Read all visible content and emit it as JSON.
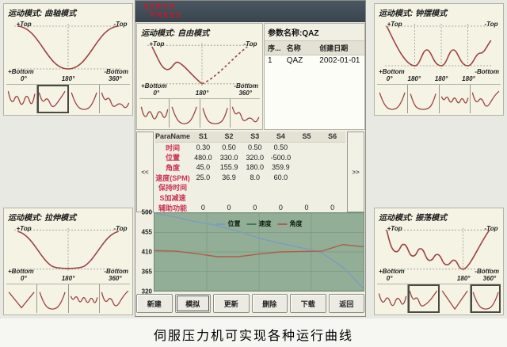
{
  "caption": "伺服压力机可实现各种运行曲线",
  "panels": {
    "crank": {
      "title": "运动模式: 曲轴模式",
      "top_left": "+Top",
      "top_right": "-Top",
      "bottom_left": "+Bottom",
      "bottom_right": "-Bottom",
      "ticks": [
        "0°",
        "180°",
        "360°"
      ]
    },
    "pendulum": {
      "title": "运动模式: 钟摆模式",
      "top_left": "+Top",
      "top_right": "-Top",
      "bottom_left": "+Bottom",
      "bottom_right": "-Bottom",
      "ticks": [
        "0°",
        "180°",
        "180°",
        "180°"
      ]
    },
    "stretch": {
      "title": "运动模式: 拉伸模式",
      "top_left": "+Top",
      "top_right": "-Top",
      "bottom_left": "+Bottom",
      "bottom_right": "-Bottom",
      "ticks": [
        "0°",
        "180°",
        "360°"
      ]
    },
    "oscillate": {
      "title": "运动模式: 振荡模式",
      "top_left": "+Top",
      "top_right": "-Top",
      "bottom_left": "+Bottom",
      "bottom_right": "-Bottom",
      "ticks": [
        "0°",
        "180°",
        "360°"
      ]
    },
    "free": {
      "title": "运动模式: 自由模式",
      "top_left": "+Top",
      "top_right": "-Top",
      "bottom_left": "+Bottom",
      "bottom_right": "-Bottom",
      "ticks": [
        "0°",
        "180°",
        "360°"
      ]
    }
  },
  "window": {
    "titlebar": {
      "line1": "SERVO",
      "line2": "PRESS"
    },
    "param_list": {
      "title": "参数名称:QAZ",
      "columns": [
        "序...",
        "名称",
        "创建日期"
      ],
      "rows": [
        [
          "1",
          "QAZ",
          "2002-01-01"
        ]
      ]
    },
    "param_table": {
      "left_scroll": "<<",
      "right_scroll": ">>",
      "header": [
        "ParaName",
        "S1",
        "S2",
        "S3",
        "S4",
        "S5",
        "S6"
      ],
      "rows": [
        {
          "label": "时间",
          "values": [
            "0.30",
            "0.50",
            "0.50",
            "0.50",
            "",
            ""
          ]
        },
        {
          "label": "位置",
          "values": [
            "480.0",
            "330.0",
            "320.0",
            "-500.0",
            "",
            ""
          ]
        },
        {
          "label": "角度",
          "values": [
            "45.0",
            "155.9",
            "180.0",
            "359.9",
            "",
            ""
          ]
        },
        {
          "label": "速度(SPM)",
          "values": [
            "25.0",
            "36.9",
            "8.0",
            "60.0",
            "",
            ""
          ]
        },
        {
          "label": "保持时间",
          "values": [
            "",
            "",
            "",
            "",
            "",
            ""
          ]
        },
        {
          "label": "S加减速",
          "values": [
            "",
            "",
            "",
            "",
            "",
            ""
          ]
        },
        {
          "label": "辅助功能",
          "values": [
            "0",
            "0",
            "0",
            "0",
            "0",
            "0"
          ]
        }
      ]
    },
    "buttons": [
      "新建",
      "模拟",
      "更新",
      "删除",
      "下载",
      "返回"
    ]
  },
  "chart_data": {
    "type": "line",
    "title": "",
    "legend": [
      "位置",
      "速度",
      "角度"
    ],
    "legend_position": "top-center",
    "grid": true,
    "ylim": [
      320,
      500
    ],
    "y_ticks": [
      500,
      455,
      410,
      365,
      320
    ],
    "x_percent": [
      0,
      10,
      20,
      30,
      40,
      50,
      60,
      70,
      80,
      90,
      100
    ],
    "series": [
      {
        "name": "位置",
        "color": "#7b9cc2",
        "values": [
          500,
          491,
          480,
          471,
          458,
          442,
          430,
          420,
          408,
          375,
          325
        ]
      },
      {
        "name": "速度",
        "color": "#3f7d4f",
        "values": []
      },
      {
        "name": "角度",
        "color": "#ab5f4c",
        "values": [
          413,
          412,
          406,
          399,
          399,
          405,
          410,
          411,
          412,
          427,
          422
        ]
      }
    ]
  },
  "colors": {
    "accent_red": "#cf1623",
    "curve": "#9c4444",
    "titlebar": "#3e4a55",
    "chart_bg": "#93ae97"
  }
}
